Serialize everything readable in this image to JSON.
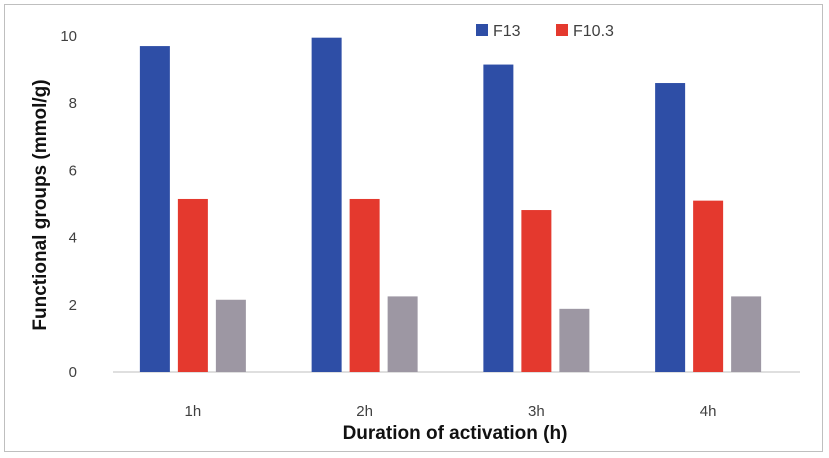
{
  "chart_data": {
    "type": "bar",
    "categories": [
      "1h",
      "2h",
      "3h",
      "4h"
    ],
    "series": [
      {
        "name": "F13",
        "color": "#2e4ea6",
        "values": [
          9.7,
          9.95,
          9.15,
          8.6
        ]
      },
      {
        "name": "F10.3",
        "color": "#e4392e",
        "values": [
          5.15,
          5.15,
          4.82,
          5.1
        ]
      },
      {
        "color": "#9d97a3",
        "values": [
          2.15,
          2.25,
          1.88,
          2.25
        ]
      }
    ],
    "xlabel": "Duration of activation (h)",
    "ylabel": "Functional groups (mmol/g)",
    "ylim": [
      0,
      10
    ],
    "yticks": [
      0,
      2,
      4,
      6,
      8,
      10
    ],
    "grid": false,
    "legend_position": "top-right"
  }
}
